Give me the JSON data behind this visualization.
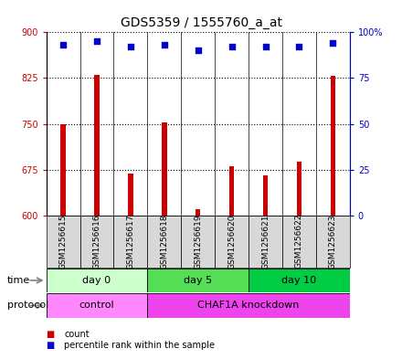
{
  "title": "GDS5359 / 1555760_a_at",
  "samples": [
    "GSM1256615",
    "GSM1256616",
    "GSM1256617",
    "GSM1256618",
    "GSM1256619",
    "GSM1256620",
    "GSM1256621",
    "GSM1256622",
    "GSM1256623"
  ],
  "counts": [
    750,
    830,
    668,
    752,
    610,
    680,
    665,
    688,
    828
  ],
  "percentile_ranks": [
    93,
    95,
    92,
    93,
    90,
    92,
    92,
    92,
    94
  ],
  "ylim_left": [
    600,
    900
  ],
  "ylim_right": [
    0,
    100
  ],
  "yticks_left": [
    600,
    675,
    750,
    825,
    900
  ],
  "yticks_right": [
    0,
    25,
    50,
    75,
    100
  ],
  "ytick_labels_right": [
    "0",
    "25",
    "50",
    "75",
    "100%"
  ],
  "bar_color": "#cc0000",
  "dot_color": "#0000cc",
  "grid_color": "black",
  "time_groups": [
    {
      "label": "day 0",
      "start": 0,
      "end": 3,
      "color": "#ccffcc"
    },
    {
      "label": "day 5",
      "start": 3,
      "end": 6,
      "color": "#55dd55"
    },
    {
      "label": "day 10",
      "start": 6,
      "end": 9,
      "color": "#00cc44"
    }
  ],
  "protocol_groups": [
    {
      "label": "control",
      "start": 0,
      "end": 3,
      "color": "#ff88ff"
    },
    {
      "label": "CHAF1A knockdown",
      "start": 3,
      "end": 9,
      "color": "#ee44ee"
    }
  ],
  "time_label": "time",
  "protocol_label": "protocol",
  "legend_count_label": "count",
  "legend_pct_label": "percentile rank within the sample",
  "label_color_left": "#cc0000",
  "label_color_right": "#0000cc",
  "title_fontsize": 10,
  "tick_fontsize": 7,
  "sample_label_fontsize": 6.5
}
